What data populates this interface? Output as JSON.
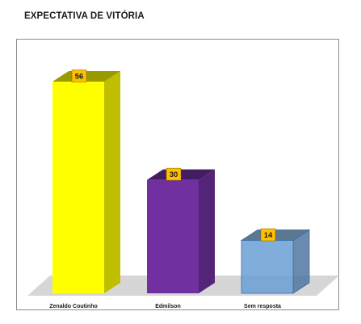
{
  "chart_data": {
    "type": "bar",
    "title": "EXPECTATIVA DE VITÓRIA",
    "categories": [
      "Zenaldo Coutinho",
      "Edmilson",
      "Sem resposta"
    ],
    "values": [
      56,
      30,
      14
    ],
    "ylim": [
      0,
      56
    ],
    "grid": false,
    "legend": "none",
    "style": "3d-columns",
    "colors": {
      "Zenaldo Coutinho": "#ffff00",
      "Edmilson": "#7030a0",
      "Sem resposta": "#6a9fd4"
    },
    "data_labels": true,
    "label_box_color": "#ffc000"
  }
}
